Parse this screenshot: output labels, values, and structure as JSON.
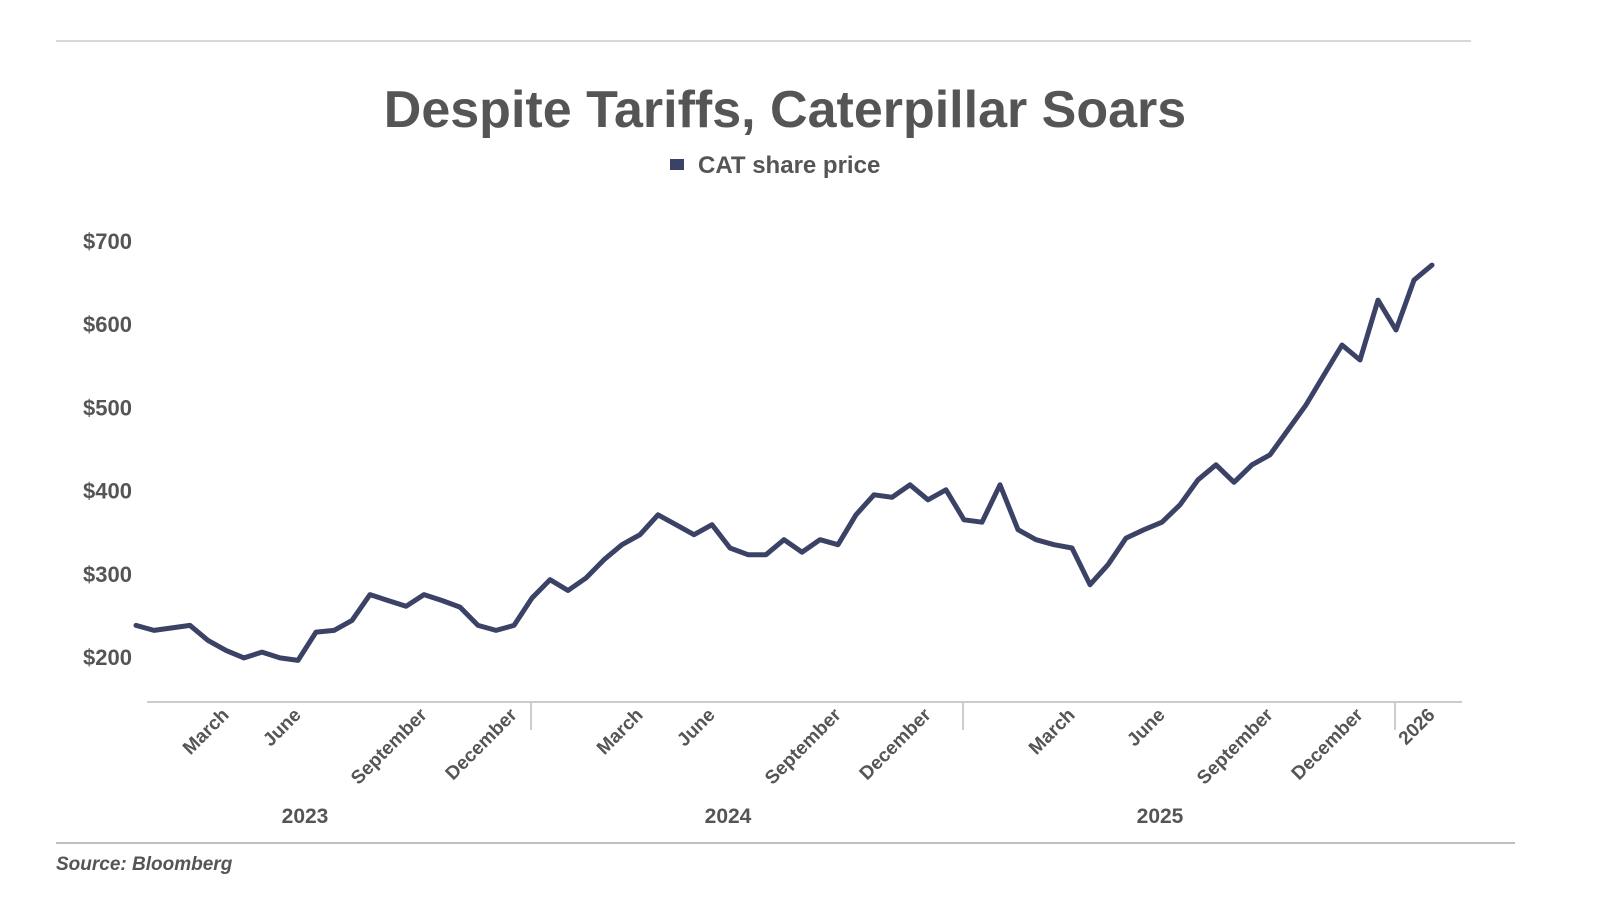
{
  "chart_data": {
    "type": "line",
    "title": "Despite Tariffs, Caterpillar Soars",
    "source": "Source: Bloomberg",
    "categories": [
      null,
      null,
      null,
      null,
      null,
      "March",
      null,
      null,
      null,
      "June",
      null,
      null,
      null,
      null,
      null,
      null,
      "September",
      null,
      null,
      null,
      null,
      "December",
      null,
      null,
      null,
      null,
      null,
      null,
      "March",
      null,
      null,
      null,
      "June",
      null,
      null,
      null,
      null,
      null,
      null,
      "September",
      null,
      null,
      null,
      null,
      "December",
      null,
      null,
      null,
      null,
      null,
      null,
      null,
      "March",
      null,
      null,
      null,
      null,
      "June",
      null,
      null,
      null,
      null,
      null,
      "September",
      null,
      null,
      null,
      null,
      "December",
      null,
      null,
      null,
      "2026"
    ],
    "year_labels": [
      "2023",
      "2024",
      "2025"
    ],
    "series": [
      {
        "name": "CAT share price",
        "color": "#3b4266",
        "values": [
          238,
          232,
          235,
          238,
          220,
          208,
          199,
          206,
          199,
          196,
          230,
          232,
          244,
          275,
          268,
          261,
          275,
          268,
          260,
          238,
          232,
          238,
          271,
          293,
          280,
          295,
          317,
          335,
          347,
          371,
          359,
          347,
          359,
          331,
          323,
          323,
          341,
          326,
          341,
          335,
          371,
          395,
          392,
          407,
          389,
          401,
          365,
          362,
          407,
          353,
          341,
          335,
          331,
          287,
          311,
          343,
          353,
          362,
          383,
          413,
          431,
          410,
          431,
          443,
          473,
          503,
          539,
          575,
          557,
          629,
          593,
          653,
          671
        ]
      }
    ],
    "ylim": [
      146,
      730
    ],
    "yticks": [
      {
        "value": 200,
        "label": "$200"
      },
      {
        "value": 300,
        "label": "$300"
      },
      {
        "value": 400,
        "label": "$400"
      },
      {
        "value": 500,
        "label": "$500"
      },
      {
        "value": 600,
        "label": "$600"
      },
      {
        "value": 700,
        "label": "$700"
      }
    ],
    "grid": false,
    "legend": "top"
  }
}
